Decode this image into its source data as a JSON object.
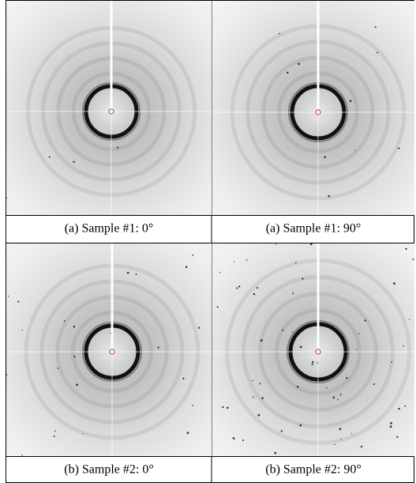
{
  "panels": [
    {
      "caption": "(a) Sample #1: 0°"
    },
    {
      "caption": "(a) Sample #1: 90°"
    },
    {
      "caption": "(b) Sample #2: 0°"
    },
    {
      "caption": "(b) Sample #2: 90°"
    }
  ]
}
